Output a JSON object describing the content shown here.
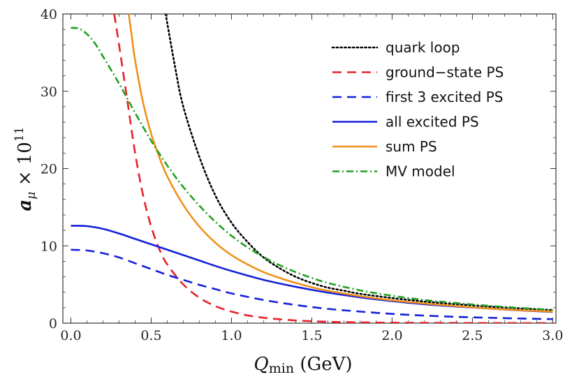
{
  "chart_data": {
    "type": "line",
    "xlabel_main": "Q",
    "xlabel_sub": "min",
    "xlabel_unit": " (GeV)",
    "ylabel_main": "a",
    "ylabel_sub": "μ",
    "ylabel_times": " × 10",
    "ylabel_exp": "11",
    "xlim": [
      -0.05,
      3.02
    ],
    "ylim": [
      0,
      40
    ],
    "xticks": [
      0.0,
      0.5,
      1.0,
      1.5,
      2.0,
      2.5,
      3.0
    ],
    "xtick_labels": [
      "0.0",
      "0.5",
      "1.0",
      "1.5",
      "2.0",
      "2.5",
      "3.0"
    ],
    "yticks": [
      0,
      10,
      20,
      30,
      40
    ],
    "ytick_labels": [
      "0",
      "10",
      "20",
      "30",
      "40"
    ],
    "legend_position": "top-right",
    "series": [
      {
        "name": "quark loop",
        "color": "#000000",
        "style": "dotted",
        "x": [
          0.59,
          0.65,
          0.7,
          0.8,
          0.9,
          1.0,
          1.1,
          1.2,
          1.3,
          1.4,
          1.5,
          1.6,
          1.7,
          1.8,
          2.0,
          2.2,
          2.4,
          2.6,
          2.8,
          3.0
        ],
        "y": [
          40.0,
          33.0,
          28.0,
          21.5,
          16.5,
          13.0,
          10.5,
          8.5,
          7.1,
          6.0,
          5.2,
          4.6,
          4.2,
          3.8,
          3.25,
          2.8,
          2.45,
          2.15,
          1.9,
          1.7
        ]
      },
      {
        "name": "ground−state PS",
        "color": "#e8202a",
        "style": "dashed",
        "x": [
          0.27,
          0.3,
          0.35,
          0.4,
          0.45,
          0.5,
          0.55,
          0.6,
          0.7,
          0.8,
          0.9,
          1.0,
          1.1,
          1.2,
          1.3,
          1.4,
          1.5,
          1.6,
          1.7,
          2.0,
          2.5,
          3.0
        ],
        "y": [
          40.0,
          36.0,
          29.0,
          22.0,
          16.5,
          12.5,
          9.6,
          7.6,
          5.0,
          3.3,
          2.2,
          1.5,
          1.0,
          0.7,
          0.5,
          0.35,
          0.25,
          0.18,
          0.13,
          0.06,
          0.02,
          0.01
        ]
      },
      {
        "name": "first 3 excited PS",
        "color": "#1420d8",
        "style": "dashed",
        "x": [
          0.0,
          0.1,
          0.2,
          0.3,
          0.4,
          0.5,
          0.6,
          0.7,
          0.8,
          0.9,
          1.0,
          1.2,
          1.4,
          1.6,
          1.8,
          2.0,
          2.2,
          2.4,
          2.6,
          2.8,
          3.0
        ],
        "y": [
          9.5,
          9.4,
          9.05,
          8.5,
          7.75,
          7.0,
          6.25,
          5.6,
          4.95,
          4.4,
          3.85,
          3.0,
          2.35,
          1.85,
          1.5,
          1.2,
          0.98,
          0.82,
          0.7,
          0.6,
          0.52
        ]
      },
      {
        "name": "all excited PS",
        "color": "#1420d8",
        "style": "solid",
        "x": [
          0.0,
          0.1,
          0.2,
          0.3,
          0.4,
          0.5,
          0.6,
          0.7,
          0.8,
          0.9,
          1.0,
          1.2,
          1.4,
          1.6,
          1.8,
          2.0,
          2.2,
          2.4,
          2.6,
          2.8,
          3.0
        ],
        "y": [
          12.6,
          12.55,
          12.2,
          11.6,
          10.9,
          10.2,
          9.5,
          8.8,
          8.1,
          7.4,
          6.75,
          5.6,
          4.7,
          3.95,
          3.35,
          2.85,
          2.45,
          2.15,
          1.9,
          1.65,
          1.45
        ]
      },
      {
        "name": "sum PS",
        "color": "#f0901a",
        "style": "solid",
        "x": [
          0.36,
          0.38,
          0.4,
          0.45,
          0.5,
          0.55,
          0.6,
          0.7,
          0.8,
          0.9,
          1.0,
          1.1,
          1.2,
          1.3,
          1.4,
          1.5,
          1.6,
          1.8,
          2.0,
          2.2,
          2.4,
          2.6,
          2.8,
          3.0
        ],
        "y": [
          40.0,
          37.0,
          34.0,
          28.5,
          24.5,
          21.5,
          19.0,
          15.3,
          12.5,
          10.4,
          8.8,
          7.6,
          6.6,
          5.85,
          5.2,
          4.65,
          4.2,
          3.5,
          2.95,
          2.55,
          2.2,
          1.9,
          1.68,
          1.48
        ]
      },
      {
        "name": "MV model",
        "color": "#1ea01e",
        "style": "dashdot",
        "x": [
          0.0,
          0.05,
          0.1,
          0.15,
          0.2,
          0.3,
          0.4,
          0.5,
          0.6,
          0.7,
          0.8,
          0.9,
          1.0,
          1.1,
          1.2,
          1.3,
          1.4,
          1.5,
          1.6,
          1.8,
          2.0,
          2.2,
          2.4,
          2.6,
          2.8,
          3.0
        ],
        "y": [
          38.2,
          38.1,
          37.4,
          36.2,
          34.5,
          31.0,
          27.2,
          23.6,
          20.4,
          17.6,
          15.2,
          13.1,
          11.3,
          9.8,
          8.55,
          7.5,
          6.6,
          5.85,
          5.2,
          4.25,
          3.55,
          3.0,
          2.6,
          2.25,
          1.97,
          1.72
        ]
      }
    ]
  }
}
